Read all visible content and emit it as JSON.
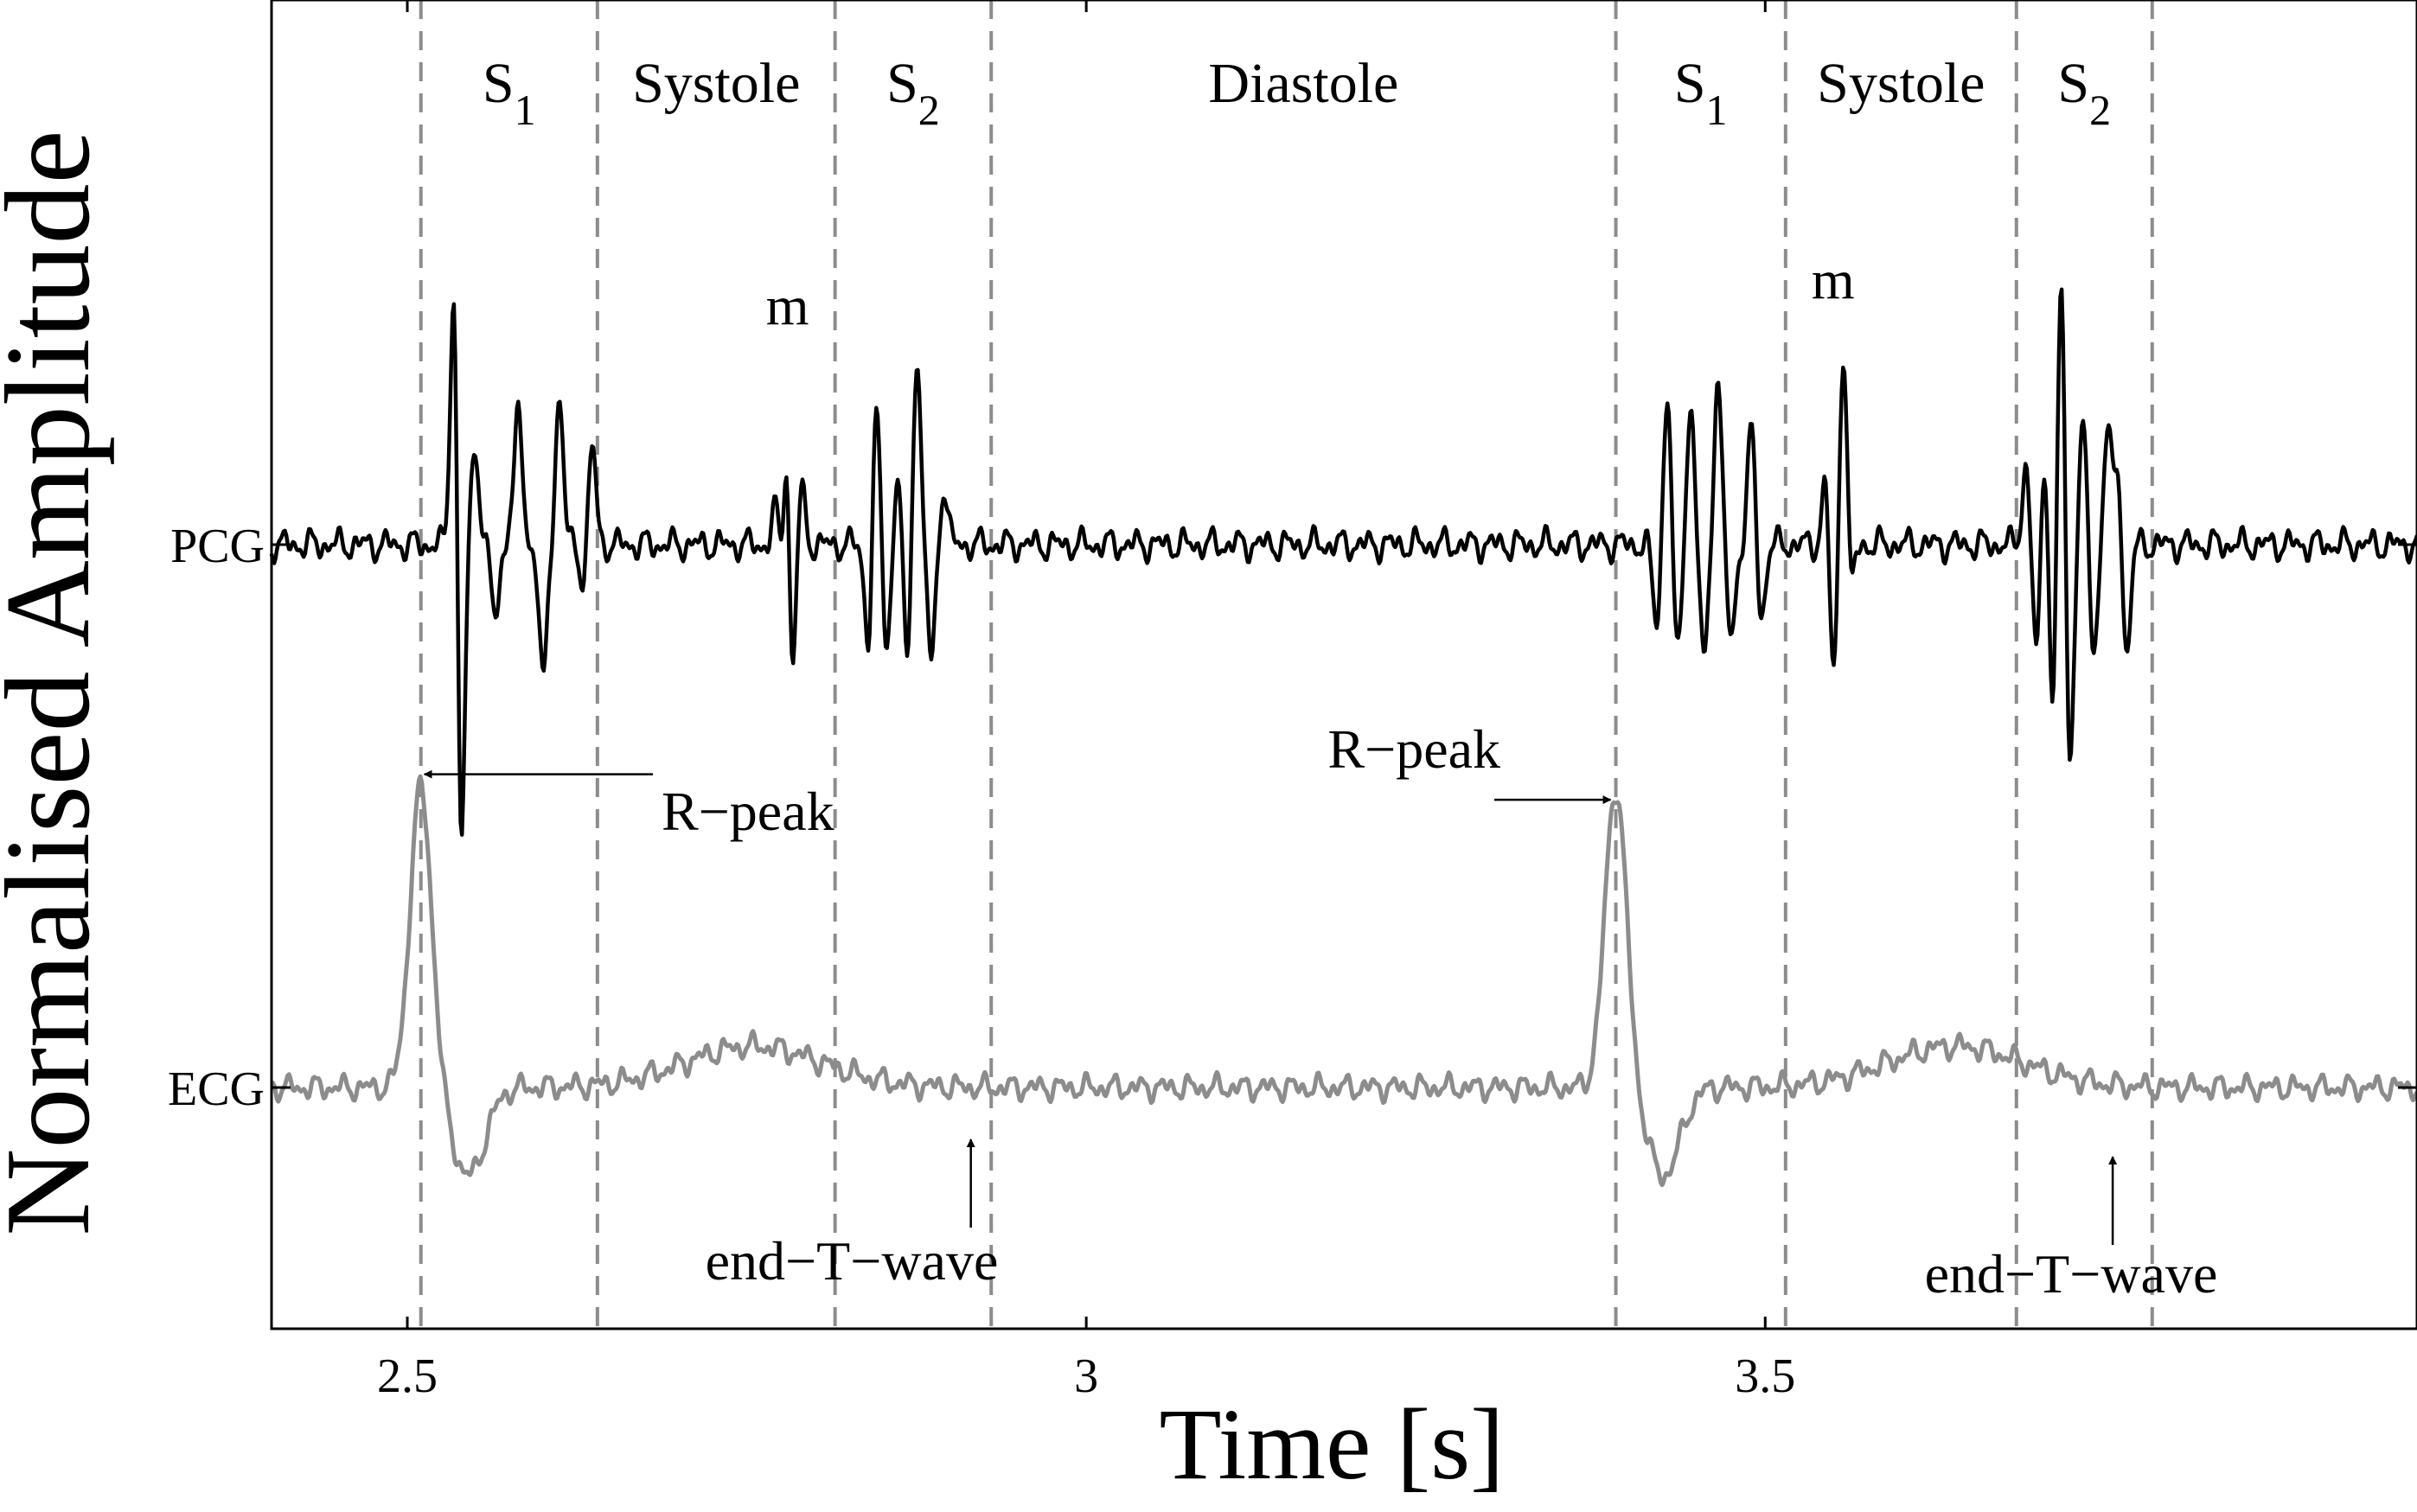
{
  "chart_data": {
    "type": "line",
    "xlabel": "Time [s]",
    "ylabel": "Normalised Amplitude",
    "xlim": [
      2.4,
      3.98
    ],
    "x_ticks": [
      2.5,
      3,
      3.5
    ],
    "x_tick_labels": [
      "2.5",
      "3",
      "3.5"
    ],
    "grid": false,
    "legend": "none",
    "series": [
      {
        "name": "PCG",
        "color": "#000000",
        "baseline_level": 0.0,
        "noise_amplitude": 0.05,
        "events": [
          {
            "t": 2.535,
            "label": "S1 spike",
            "cycles": [
              [
                2.535,
                0.9
              ],
              [
                2.539,
                -1.0
              ],
              [
                2.55,
                0.26
              ],
              [
                2.565,
                -0.2
              ],
              [
                2.575,
                0.05
              ]
            ]
          },
          {
            "t": 2.57,
            "label": "S1 tail",
            "cycles": [
              [
                2.582,
                0.34
              ],
              [
                2.6,
                -0.36
              ],
              [
                2.612,
                0.38
              ],
              [
                2.63,
                -0.1
              ],
              [
                2.636,
                0.26
              ]
            ]
          },
          {
            "t": 2.78,
            "label": "m",
            "cycles": [
              [
                2.773,
                0.2
              ],
              [
                2.776,
                -0.35
              ],
              [
                2.779,
                0.54
              ],
              [
                2.783,
                -0.45
              ],
              [
                2.79,
                0.15
              ]
            ]
          },
          {
            "t": 2.85,
            "label": "S2",
            "cycles": [
              [
                2.84,
                -0.3
              ],
              [
                2.845,
                0.38
              ],
              [
                2.853,
                -0.25
              ],
              [
                2.862,
                0.2
              ],
              [
                2.868,
                -0.35
              ],
              [
                2.875,
                0.5
              ],
              [
                2.886,
                -0.3
              ],
              [
                2.895,
                0.15
              ]
            ]
          },
          {
            "t": 3.44,
            "label": "S1 second beat",
            "cycles": [
              [
                3.42,
                -0.2
              ],
              [
                3.428,
                0.4
              ],
              [
                3.435,
                -0.3
              ],
              [
                3.445,
                0.35
              ],
              [
                3.455,
                -0.3
              ],
              [
                3.465,
                0.42
              ],
              [
                3.475,
                -0.25
              ],
              [
                3.49,
                0.3
              ],
              [
                3.497,
                -0.2
              ]
            ]
          },
          {
            "t": 3.55,
            "label": "m second beat",
            "cycles": [
              [
                3.545,
                0.2
              ],
              [
                3.55,
                -0.38
              ],
              [
                3.558,
                0.58
              ],
              [
                3.562,
                -0.2
              ]
            ]
          },
          {
            "t": 3.72,
            "label": "S2 second beat",
            "cycles": [
              [
                3.692,
                0.2
              ],
              [
                3.7,
                -0.3
              ],
              [
                3.706,
                0.28
              ],
              [
                3.712,
                -0.5
              ],
              [
                3.718,
                0.78
              ],
              [
                3.724,
                -0.62
              ],
              [
                3.734,
                0.3
              ],
              [
                3.742,
                -0.28
              ],
              [
                3.752,
                0.3
              ],
              [
                3.76,
                0.2
              ],
              [
                3.766,
                -0.3
              ]
            ]
          }
        ]
      },
      {
        "name": "ECG",
        "color": "#8c8c8c",
        "baseline_level": 0.0,
        "noise_amplitude": 0.03,
        "r_peaks": [
          2.51,
          3.39
        ],
        "r_peak_amplitude": 0.58,
        "t_wave_peaks": [
          2.755,
          3.64
        ],
        "end_t_wave": [
          2.915,
          3.775
        ]
      }
    ],
    "vertical_markers": [
      2.51,
      2.64,
      2.815,
      2.93,
      3.39,
      3.515,
      3.685,
      3.785
    ],
    "phase_labels": [
      {
        "main": "S",
        "sub": "1",
        "x_start": 2.51,
        "x_end": 2.64
      },
      {
        "main": "Systole",
        "sub": "",
        "x_start": 2.64,
        "x_end": 2.815
      },
      {
        "main": "S",
        "sub": "2",
        "x_start": 2.815,
        "x_end": 2.93
      },
      {
        "main": "Diastole",
        "sub": "",
        "x_start": 2.93,
        "x_end": 3.39
      },
      {
        "main": "S",
        "sub": "1",
        "x_start": 3.39,
        "x_end": 3.515
      },
      {
        "main": "Systole",
        "sub": "",
        "x_start": 3.515,
        "x_end": 3.685
      },
      {
        "main": "S",
        "sub": "2",
        "x_start": 3.685,
        "x_end": 3.785
      }
    ],
    "annotations": [
      {
        "id": "m1",
        "text": "m",
        "x": 2.78
      },
      {
        "id": "m2",
        "text": "m",
        "x": 3.55
      },
      {
        "id": "rpeak1",
        "text": "R−peak",
        "target_x": 2.51
      },
      {
        "id": "rpeak2",
        "text": "R−peak",
        "target_x": 3.39
      },
      {
        "id": "endt1",
        "text": "end−T−wave",
        "target_x": 2.915
      },
      {
        "id": "endt2",
        "text": "end−T−wave",
        "target_x": 3.775
      }
    ],
    "y_ticks": [
      {
        "label": "PCG",
        "series": "PCG"
      },
      {
        "label": "ECG",
        "series": "ECG"
      }
    ]
  }
}
